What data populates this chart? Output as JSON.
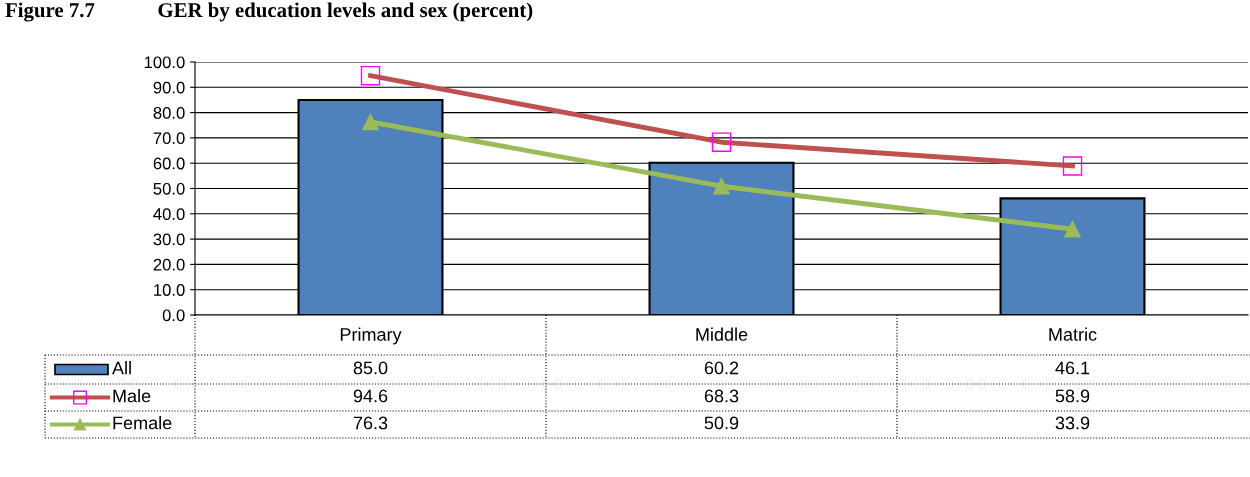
{
  "chart_data": {
    "type": "bar",
    "title": "Figure 7.7   GER by education levels and sex (percent)",
    "categories": [
      "Primary",
      "Middle",
      "Matric"
    ],
    "series": [
      {
        "name": "All",
        "color": "#4f81bd",
        "values": [
          85.0,
          60.2,
          46.1
        ],
        "value_labels": [
          "85.0",
          "60.2",
          "46.1"
        ]
      },
      {
        "name": "Male",
        "type": "line",
        "color": "#c0504d",
        "marker": "square",
        "values": [
          94.6,
          68.3,
          58.9
        ],
        "value_labels": [
          "94.6",
          "68.3",
          "58.9"
        ]
      },
      {
        "name": "Female",
        "type": "line",
        "color": "#9bbb59",
        "marker": "triangle",
        "values": [
          76.3,
          50.9,
          33.9
        ],
        "value_labels": [
          "76.3",
          "50.9",
          "33.9"
        ]
      }
    ],
    "ylim": [
      0,
      100
    ],
    "yticks": [
      {
        "value": 0,
        "label": "0.0"
      },
      {
        "value": 10,
        "label": "10.0"
      },
      {
        "value": 20,
        "label": "20.0"
      },
      {
        "value": 30,
        "label": "30.0"
      },
      {
        "value": 40,
        "label": "40.0"
      },
      {
        "value": 50,
        "label": "50.0"
      },
      {
        "value": 60,
        "label": "60.0"
      },
      {
        "value": 70,
        "label": "70.0"
      },
      {
        "value": 80,
        "label": "80.0"
      },
      {
        "value": 90,
        "label": "90.0"
      },
      {
        "value": 100,
        "label": "100.0"
      }
    ],
    "grid": "y",
    "legend": "bottom left",
    "line_style": "solid"
  }
}
